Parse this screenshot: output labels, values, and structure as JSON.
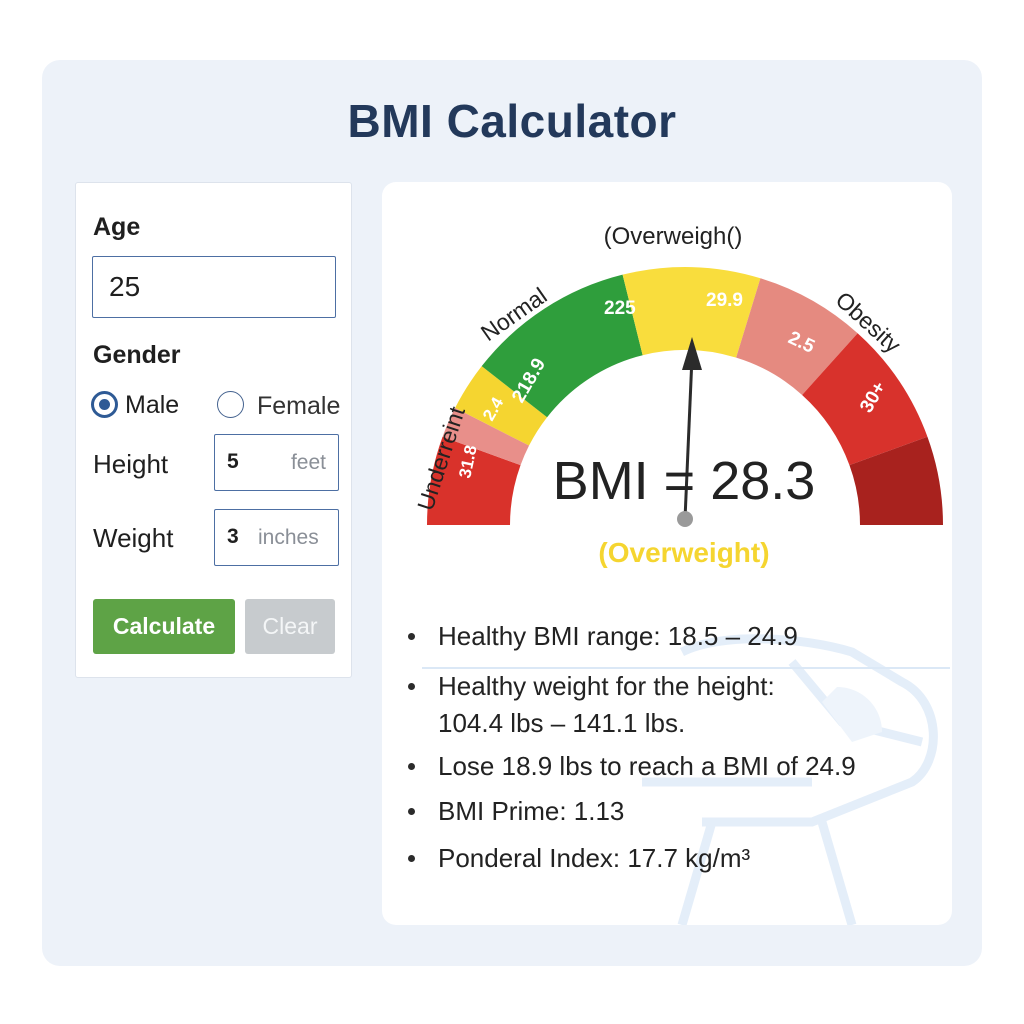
{
  "app": {
    "title": "BMI Calculator"
  },
  "form": {
    "age_label": "Age",
    "age_value": "25",
    "gender_label": "Gender",
    "gender_options": [
      {
        "label": "Male",
        "selected": true
      },
      {
        "label": "Female",
        "selected": false
      }
    ],
    "height_label": "Height",
    "height_value": "5",
    "height_unit": "feet",
    "weight_label": "Weight",
    "weight_value": "3",
    "weight_unit": "inches",
    "calculate_label": "Calculate",
    "clear_label": "Clear"
  },
  "gauge": {
    "category_top": "(Overweigh()",
    "segment_labels": {
      "underweight": "Underreint",
      "normal": "Normal",
      "obesity": "Obesity"
    },
    "tick_labels": [
      "31.8",
      "2.4",
      "218.9",
      "225",
      "29.9",
      "2.5",
      "30+"
    ],
    "bmi_text": "BMI = 28.3",
    "bmi_value": 28.3,
    "status_text": "(Overweight)",
    "colors": {
      "underweight_outer": "#d9322b",
      "underweight_inner": "#e88f8a",
      "underweight_band": "#f5d530",
      "normal": "#2f9e3c",
      "overweight": "#f9dd3d",
      "overweight_high": "#e58a80",
      "obesity": "#d8322c",
      "obesity_dark": "#a8221e",
      "status": "#f5d530"
    }
  },
  "stats": {
    "items": [
      "Healthy BMI range: 18.5 – 24.9",
      "Healthy weight for the height:",
      "Lose 18.9 lbs to reach a BMI of 24.9",
      "BMI Prime: 1.13",
      "Ponderal Index: 17.7 kg/m³"
    ],
    "item2_continuation": "104.4 lbs – 141.1 lbs."
  }
}
